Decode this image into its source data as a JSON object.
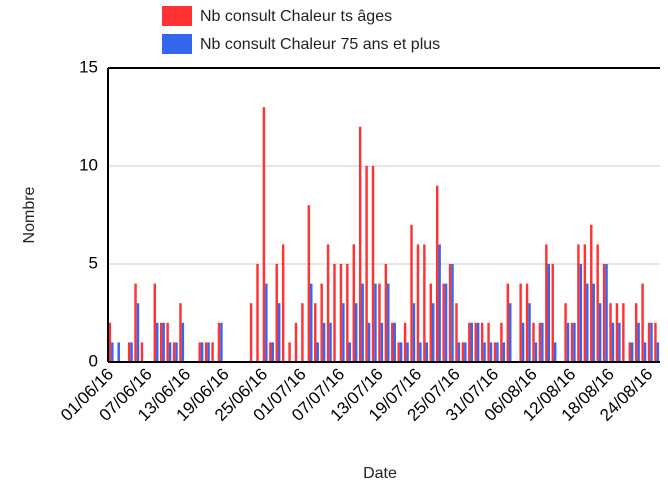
{
  "chart_data": {
    "type": "bar",
    "x_label": "Date",
    "y_label": "Nombre",
    "categories": [
      "01/06/16",
      null,
      null,
      null,
      null,
      null,
      "07/06/16",
      null,
      null,
      null,
      null,
      null,
      "13/06/16",
      null,
      null,
      null,
      null,
      null,
      "19/06/16",
      null,
      null,
      null,
      null,
      null,
      "25/06/16",
      null,
      null,
      null,
      null,
      null,
      "01/07/16",
      null,
      null,
      null,
      null,
      null,
      "07/07/16",
      null,
      null,
      null,
      null,
      null,
      "13/07/16",
      null,
      null,
      null,
      null,
      null,
      "19/07/16",
      null,
      null,
      null,
      null,
      null,
      "25/07/16",
      null,
      null,
      null,
      null,
      null,
      "31/07/16",
      null,
      null,
      null,
      null,
      null,
      "06/08/16",
      null,
      null,
      null,
      null,
      null,
      "12/08/16",
      null,
      null,
      null,
      null,
      null,
      "18/08/16",
      null,
      null,
      null,
      null,
      null,
      "24/08/16",
      null
    ],
    "series": [
      {
        "name": "Nb consult Chaleur ts âges",
        "color": "#ff3333",
        "values": [
          2,
          0,
          0,
          1,
          4,
          1,
          0,
          4,
          2,
          2,
          1,
          3,
          0,
          0,
          1,
          1,
          1,
          2,
          0,
          0,
          0,
          0,
          3,
          5,
          13,
          1,
          5,
          6,
          1,
          2,
          3,
          8,
          3,
          4,
          6,
          5,
          5,
          5,
          6,
          12,
          10,
          10,
          4,
          5,
          2,
          1,
          2,
          7,
          6,
          6,
          4,
          9,
          4,
          5,
          3,
          1,
          2,
          2,
          2,
          2,
          1,
          2,
          4,
          0,
          4,
          4,
          2,
          2,
          6,
          5,
          0,
          3,
          2,
          6,
          6,
          7,
          6,
          5,
          3,
          3,
          3,
          1,
          3,
          4,
          2,
          2
        ]
      },
      {
        "name": "Nb consult Chaleur 75 ans et plus",
        "color": "#3366ee",
        "values": [
          1,
          1,
          0,
          1,
          3,
          0,
          0,
          2,
          2,
          1,
          1,
          2,
          0,
          0,
          1,
          1,
          0,
          2,
          0,
          0,
          0,
          0,
          0,
          0,
          4,
          1,
          3,
          0,
          0,
          0,
          0,
          4,
          1,
          2,
          2,
          0,
          3,
          1,
          3,
          4,
          2,
          4,
          2,
          4,
          2,
          1,
          1,
          3,
          1,
          1,
          3,
          6,
          4,
          5,
          1,
          1,
          2,
          2,
          1,
          1,
          1,
          1,
          3,
          0,
          2,
          3,
          1,
          2,
          5,
          1,
          0,
          2,
          2,
          5,
          4,
          4,
          3,
          5,
          2,
          2,
          0,
          1,
          2,
          1,
          2,
          1
        ]
      }
    ],
    "ylim": [
      0,
      15
    ],
    "yticks": [
      0,
      5,
      10,
      15
    ],
    "grid": true
  }
}
